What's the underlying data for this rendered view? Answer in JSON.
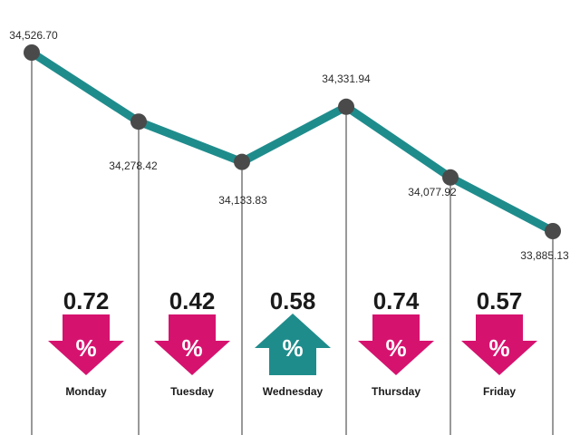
{
  "chart_data": {
    "type": "line",
    "categories": [
      "Monday",
      "Tuesday",
      "Wednesday",
      "Thursday",
      "Friday"
    ],
    "values": [
      34278.42,
      34133.83,
      34331.94,
      34077.92,
      33885.13
    ],
    "value_labels": [
      "34,278.42",
      "34,133.83",
      "34,331.94",
      "34,077.92",
      "33,885.13"
    ],
    "start_value": 34526.7,
    "start_label": "34,526.70",
    "daily_change": [
      {
        "day": "Monday",
        "percent": "0.72",
        "direction": "down"
      },
      {
        "day": "Tuesday",
        "percent": "0.42",
        "direction": "down"
      },
      {
        "day": "Wednesday",
        "percent": "0.58",
        "direction": "up"
      },
      {
        "day": "Thursday",
        "percent": "0.74",
        "direction": "down"
      },
      {
        "day": "Friday",
        "percent": "0.57",
        "direction": "down"
      }
    ],
    "percent_symbol": "%",
    "colors": {
      "line": "#1f8c8c",
      "marker": "#4a4a4a",
      "down_arrow": "#d6126f",
      "up_arrow": "#1f8c8c",
      "guide": "#333333"
    }
  }
}
